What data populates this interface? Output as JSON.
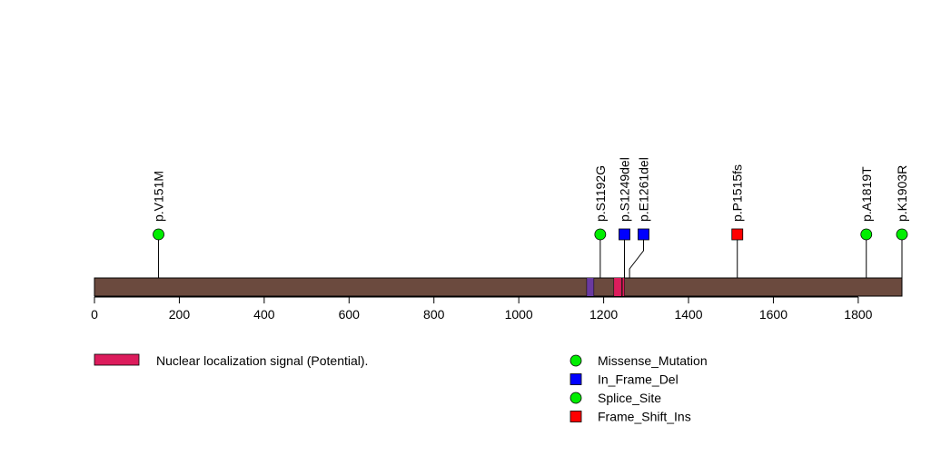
{
  "chart_data": {
    "type": "lollipop",
    "protein_length": 1903,
    "x_axis": {
      "min": 0,
      "max": 1903,
      "ticks": [
        0,
        200,
        400,
        600,
        800,
        1000,
        1200,
        1400,
        1600,
        1800
      ]
    },
    "domains": [
      {
        "name": "Nuclear localization signal (Potential).",
        "start": 1224,
        "end": 1242,
        "color": "#dc1c5c"
      }
    ],
    "regions": [
      {
        "start": 1160,
        "end": 1177,
        "color": "#6a3aa0"
      },
      {
        "start": 1244,
        "end": 1249,
        "color": "#dc1c5c"
      }
    ],
    "backbone_color": "#6b4a3e",
    "mutations": [
      {
        "label": "p.V151M",
        "position": 151,
        "type": "Missense_Mutation"
      },
      {
        "label": "p.S1192G",
        "position": 1192,
        "type": "Missense_Mutation"
      },
      {
        "label": "p.S1249del",
        "position": 1249,
        "type": "In_Frame_Del"
      },
      {
        "label": "p.E1261del",
        "position": 1261,
        "type": "In_Frame_Del"
      },
      {
        "label": "p.P1515fs",
        "position": 1515,
        "type": "Frame_Shift_Ins"
      },
      {
        "label": "p.A1819T",
        "position": 1819,
        "type": "Missense_Mutation"
      },
      {
        "label": "p.K1903R",
        "position": 1903,
        "type": "Missense_Mutation"
      }
    ],
    "legend": [
      {
        "label": "Missense_Mutation",
        "shape": "circle",
        "color": "#00ee00"
      },
      {
        "label": "In_Frame_Del",
        "shape": "square",
        "color": "#0000ff"
      },
      {
        "label": "Splice_Site",
        "shape": "circle",
        "color": "#00ee00"
      },
      {
        "label": "Frame_Shift_Ins",
        "shape": "square",
        "color": "#ff0000"
      }
    ],
    "type_styles": {
      "Missense_Mutation": {
        "shape": "circle",
        "color": "#00ee00"
      },
      "In_Frame_Del": {
        "shape": "square",
        "color": "#0000ff"
      },
      "Splice_Site": {
        "shape": "circle",
        "color": "#00ee00"
      },
      "Frame_Shift_Ins": {
        "shape": "square",
        "color": "#ff0000"
      }
    }
  }
}
